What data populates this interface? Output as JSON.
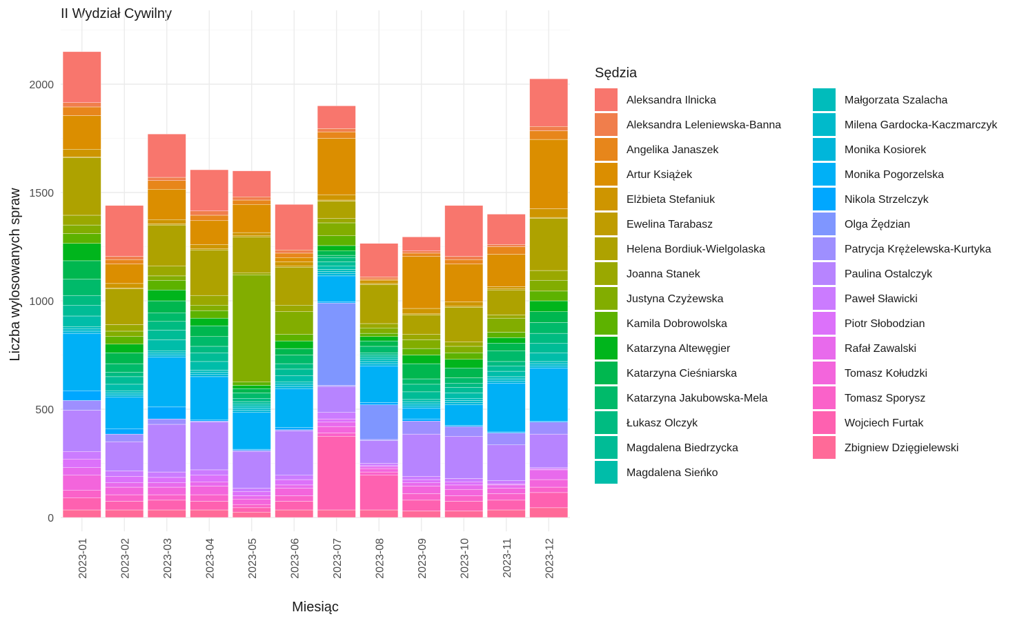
{
  "chart_data": {
    "type": "bar",
    "stacked": true,
    "title": "II Wydział Cywilny",
    "xlabel": "Miesiąc",
    "ylabel": "Liczba wylosowanych spraw",
    "ylim": [
      0,
      2250
    ],
    "yticks": [
      0,
      500,
      1000,
      1500,
      2000
    ],
    "grid": true,
    "legend_title": "Sędzia",
    "legend_position": "right",
    "categories": [
      "2023-01",
      "2023-02",
      "2023-03",
      "2023-04",
      "2023-05",
      "2023-06",
      "2023-07",
      "2023-08",
      "2023-09",
      "2023-10",
      "2023-11",
      "2023-12"
    ],
    "series": [
      {
        "name": "Aleksandra Ilnicka",
        "color": "#F8766D",
        "values": [
          235,
          235,
          200,
          190,
          120,
          210,
          105,
          155,
          65,
          235,
          140,
          220
        ]
      },
      {
        "name": "Aleksandra Leleniewska-Banna",
        "color": "#F07E4C",
        "values": [
          20,
          15,
          15,
          20,
          15,
          15,
          15,
          10,
          10,
          15,
          10,
          20
        ]
      },
      {
        "name": "Angelika Janaszek",
        "color": "#E7861B",
        "values": [
          40,
          20,
          40,
          25,
          20,
          20,
          30,
          5,
          15,
          20,
          35,
          40
        ]
      },
      {
        "name": "Artur Książek",
        "color": "#DB8E00",
        "values": [
          155,
          90,
          140,
          110,
          130,
          20,
          260,
          0,
          240,
          175,
          150,
          320
        ]
      },
      {
        "name": "Elżbieta Stefaniuk",
        "color": "#CE9500",
        "values": [
          35,
          20,
          20,
          20,
          15,
          20,
          25,
          15,
          25,
          20,
          10,
          40
        ]
      },
      {
        "name": "Ewelina Tarabasz",
        "color": "#BF9C00",
        "values": [
          5,
          5,
          5,
          5,
          5,
          5,
          5,
          5,
          5,
          5,
          5,
          5
        ]
      },
      {
        "name": "Helena Bordiuk-Wielgolaska",
        "color": "#AEA200",
        "values": [
          265,
          165,
          190,
          210,
          165,
          175,
          80,
          180,
          90,
          160,
          115,
          240
        ]
      },
      {
        "name": "Joanna Stanek",
        "color": "#9AA800",
        "values": [
          45,
          30,
          45,
          45,
          10,
          30,
          20,
          20,
          25,
          20,
          15,
          45
        ]
      },
      {
        "name": "Justyna Czyżewska",
        "color": "#82AD00",
        "values": [
          40,
          25,
          20,
          25,
          495,
          105,
          60,
          25,
          40,
          30,
          65,
          50
        ]
      },
      {
        "name": "Kamila Dobrowolska",
        "color": "#5DB200",
        "values": [
          45,
          35,
          45,
          35,
          15,
          30,
          45,
          15,
          30,
          30,
          25,
          45
        ]
      },
      {
        "name": "Katarzyna Altewęgier",
        "color": "#00B51C",
        "values": [
          80,
          40,
          50,
          35,
          15,
          35,
          25,
          20,
          40,
          40,
          25,
          50
        ]
      },
      {
        "name": "Katarzyna Cieśniarska",
        "color": "#00B74F",
        "values": [
          85,
          50,
          55,
          50,
          20,
          30,
          20,
          25,
          70,
          45,
          35,
          50
        ]
      },
      {
        "name": "Katarzyna Jakubowska-Mela",
        "color": "#00BA6A",
        "values": [
          75,
          40,
          40,
          45,
          25,
          40,
          10,
          30,
          25,
          25,
          50,
          50
        ]
      },
      {
        "name": "Łukasz Olczyk",
        "color": "#00BB81",
        "values": [
          45,
          20,
          40,
          30,
          15,
          25,
          20,
          10,
          35,
          20,
          20,
          45
        ]
      },
      {
        "name": "Magdalena Biedrzycka",
        "color": "#00BC96",
        "values": [
          50,
          35,
          45,
          40,
          10,
          30,
          20,
          10,
          35,
          25,
          25,
          45
        ]
      },
      {
        "name": "Magdalena Sieńko",
        "color": "#00BDA9",
        "values": [
          50,
          30,
          50,
          40,
          10,
          30,
          15,
          10,
          10,
          25,
          25,
          40
        ]
      },
      {
        "name": "Małgorzata Szalacha",
        "color": "#00BCBB",
        "values": [
          10,
          10,
          10,
          10,
          10,
          10,
          10,
          10,
          10,
          10,
          10,
          10
        ]
      },
      {
        "name": "Milena Gardocka-Kaczmarczyk",
        "color": "#00BACB",
        "values": [
          10,
          10,
          10,
          10,
          10,
          10,
          10,
          10,
          10,
          10,
          10,
          10
        ]
      },
      {
        "name": "Monika Kosiorek",
        "color": "#00B6DA",
        "values": [
          10,
          10,
          10,
          10,
          10,
          10,
          10,
          10,
          10,
          10,
          10,
          10
        ]
      },
      {
        "name": "Monika Pogorzelska",
        "color": "#00B0F6",
        "values": [
          265,
          145,
          230,
          200,
          170,
          180,
          120,
          170,
          50,
          95,
          225,
          245
        ]
      },
      {
        "name": "Nikola Strzelczyk",
        "color": "#00A7FF",
        "values": [
          45,
          25,
          55,
          5,
          5,
          10,
          5,
          10,
          10,
          5,
          5,
          5
        ]
      },
      {
        "name": "Olga Żędzian",
        "color": "#7F96FF",
        "values": [
          0,
          0,
          0,
          0,
          0,
          0,
          380,
          160,
          0,
          0,
          0,
          0
        ]
      },
      {
        "name": "Patrycja Krężelewska-Kurtyka",
        "color": "#9E8FFF",
        "values": [
          45,
          35,
          25,
          5,
          5,
          5,
          5,
          5,
          60,
          45,
          55,
          55
        ]
      },
      {
        "name": "Paulina Ostalczyk",
        "color": "#B784FF",
        "values": [
          190,
          135,
          220,
          220,
          170,
          205,
          120,
          105,
          195,
          195,
          165,
          155
        ]
      },
      {
        "name": "Paweł Sławicki",
        "color": "#CB7BFF",
        "values": [
          35,
          25,
          25,
          25,
          15,
          20,
          30,
          10,
          15,
          15,
          15,
          5
        ]
      },
      {
        "name": "Piotr Słobodzian",
        "color": "#DC71FA",
        "values": [
          40,
          30,
          25,
          30,
          20,
          25,
          15,
          5,
          15,
          15,
          5,
          5
        ]
      },
      {
        "name": "Rafał Zawalski",
        "color": "#E86AEC",
        "values": [
          35,
          20,
          20,
          20,
          15,
          15,
          20,
          10,
          15,
          20,
          15,
          45
        ]
      },
      {
        "name": "Tomasz Kołudzki",
        "color": "#F365DC",
        "values": [
          70,
          35,
          35,
          40,
          25,
          35,
          30,
          15,
          35,
          30,
          25,
          35
        ]
      },
      {
        "name": "Tomasz Sporysz",
        "color": "#FA62C9",
        "values": [
          35,
          30,
          25,
          30,
          15,
          25,
          15,
          15,
          30,
          25,
          30,
          25
        ]
      },
      {
        "name": "Wojciech Furtak",
        "color": "#FE61B0",
        "values": [
          55,
          40,
          45,
          40,
          20,
          40,
          340,
          160,
          50,
          45,
          45,
          70
        ]
      },
      {
        "name": "Zbigniew Dzięgielewski",
        "color": "#FF6A98",
        "values": [
          35,
          35,
          35,
          35,
          25,
          35,
          35,
          35,
          30,
          30,
          35,
          45
        ]
      }
    ]
  }
}
